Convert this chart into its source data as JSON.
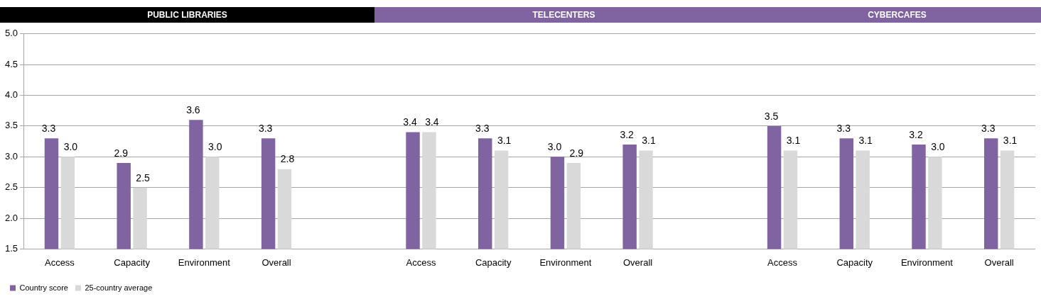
{
  "chart_data": {
    "type": "bar",
    "annotations": [
      "PUBLIC LIBRARIES",
      "TELECENTERS",
      "CYBERCAFES"
    ],
    "categories": [
      "Access",
      "Capacity",
      "Environment",
      "Overall",
      null,
      "Access",
      "Capacity",
      "Environment",
      "Overall",
      null,
      "Access",
      "Capacity",
      "Environment",
      "Overall"
    ],
    "series": [
      {
        "name": "Country score",
        "color": "#8064a2",
        "values": [
          3.3,
          2.9,
          3.6,
          3.3,
          null,
          3.4,
          3.3,
          3.0,
          3.2,
          null,
          3.5,
          3.3,
          3.2,
          3.3
        ],
        "value_labels": [
          "3.3",
          "2.9",
          "3.6",
          "3.3",
          null,
          "3.4",
          "3.3",
          "3.0",
          "3.2",
          null,
          "3.5",
          "3.3",
          "3.2",
          "3.3"
        ]
      },
      {
        "name": "25-country average",
        "color": "#d9d9d9",
        "values": [
          3.0,
          2.5,
          3.0,
          2.8,
          null,
          3.4,
          3.1,
          2.9,
          3.1,
          null,
          3.1,
          3.1,
          3.0,
          3.1
        ],
        "value_labels": [
          "3.0",
          "2.5",
          "3.0",
          "2.8",
          null,
          "3.4",
          "3.1",
          "2.9",
          "3.1",
          null,
          "3.1",
          "3.1",
          "3.0",
          "3.1"
        ]
      }
    ],
    "ylim": [
      1.5,
      5
    ],
    "yticks": [
      {
        "value": 1.5,
        "label": "1.5"
      },
      {
        "value": 2,
        "label": "2.0"
      },
      {
        "value": 2.5,
        "label": "2.5"
      },
      {
        "value": 3,
        "label": "3.0"
      },
      {
        "value": 3.5,
        "label": "3.5"
      },
      {
        "value": 4,
        "label": "4.0"
      },
      {
        "value": 4.5,
        "label": "4.5"
      },
      {
        "value": 5,
        "label": "5.0"
      }
    ],
    "grid": "y",
    "legend": "bottom left"
  }
}
